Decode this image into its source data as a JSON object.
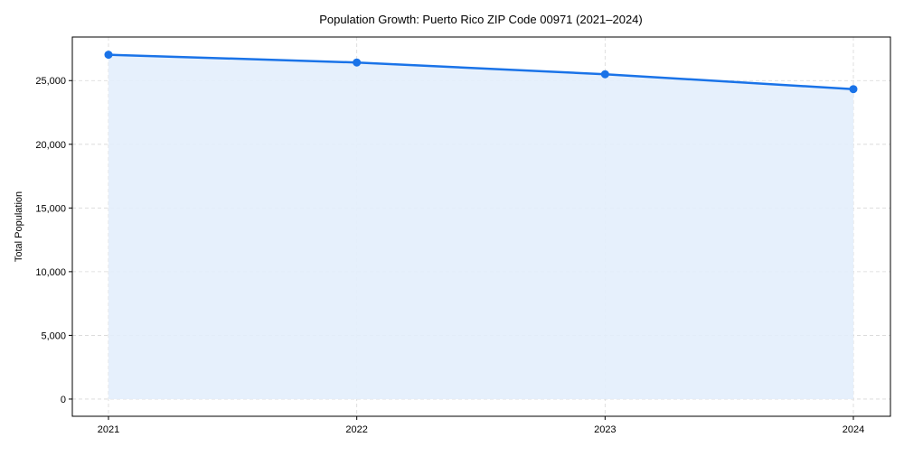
{
  "chart_data": {
    "type": "area",
    "title": "Population Growth: Puerto Rico ZIP Code 00971 (2021–2024)",
    "xlabel": "",
    "ylabel": "Total Population",
    "categories": [
      "2021",
      "2022",
      "2023",
      "2024"
    ],
    "series": [
      {
        "name": "Total Population",
        "values": [
          27030,
          26420,
          25500,
          24330
        ],
        "color": "#1a73e8",
        "fill": "#e3eefc"
      }
    ],
    "yticks": [
      0,
      5000,
      10000,
      15000,
      20000,
      25000
    ],
    "ytick_labels": [
      "0",
      "5,000",
      "10,000",
      "15,000",
      "20,000",
      "25,000"
    ],
    "ylim": [
      -1350,
      28420
    ],
    "grid": true,
    "legend": "none"
  }
}
